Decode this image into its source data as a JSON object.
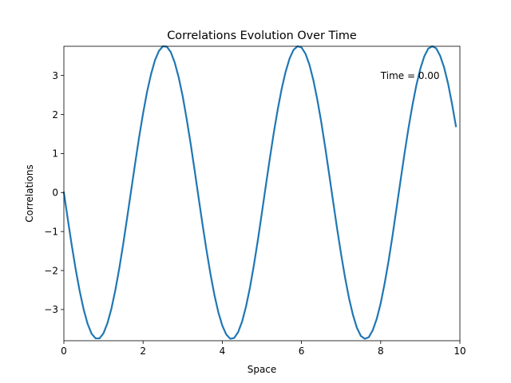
{
  "chart_data": {
    "type": "line",
    "title": "Correlations Evolution Over Time",
    "xlabel": "Space",
    "ylabel": "Correlations",
    "xlim": [
      0,
      10
    ],
    "ylim": [
      -3.8,
      3.75
    ],
    "xticks": [
      0,
      2,
      4,
      6,
      8,
      10
    ],
    "xtick_labels": [
      "0",
      "2",
      "4",
      "6",
      "8",
      "10"
    ],
    "yticks": [
      -3,
      -2,
      -1,
      0,
      1,
      2,
      3
    ],
    "ytick_labels": [
      "−3",
      "−2",
      "−1",
      "0",
      "1",
      "2",
      "3"
    ],
    "grid": false,
    "legend": "none",
    "annotation": {
      "text": "Time = 0.00",
      "x": 8.0,
      "y": 3.0
    },
    "series": [
      {
        "color": "#1f77b4",
        "x": [
          0.0,
          0.1,
          0.2,
          0.3,
          0.4,
          0.5,
          0.6,
          0.7,
          0.8,
          0.9,
          1.0,
          1.1,
          1.2,
          1.3,
          1.4,
          1.5,
          1.6,
          1.7,
          1.8,
          1.9,
          2.0,
          2.1,
          2.2,
          2.3,
          2.4,
          2.5,
          2.6,
          2.7,
          2.8,
          2.9,
          3.0,
          3.1,
          3.2,
          3.3,
          3.4,
          3.5,
          3.6,
          3.7,
          3.8,
          3.9,
          4.0,
          4.1,
          4.2,
          4.3,
          4.4,
          4.5,
          4.6,
          4.7,
          4.8,
          4.9,
          5.0,
          5.1,
          5.2,
          5.3,
          5.4,
          5.5,
          5.6,
          5.7,
          5.8,
          5.9,
          6.0,
          6.1,
          6.2,
          6.3,
          6.4,
          6.5,
          6.6,
          6.7,
          6.8,
          6.9,
          7.0,
          7.1,
          7.2,
          7.3,
          7.4,
          7.5,
          7.6,
          7.7,
          7.8,
          7.9,
          8.0,
          8.1,
          8.2,
          8.3,
          8.4,
          8.5,
          8.6,
          8.7,
          8.8,
          8.9,
          9.0,
          9.1,
          9.2,
          9.3,
          9.4,
          9.5,
          9.6,
          9.7,
          9.8,
          9.9
        ],
        "y": [
          0.0,
          -0.69,
          -1.36,
          -1.98,
          -2.53,
          -3.0,
          -3.37,
          -3.62,
          -3.74,
          -3.74,
          -3.61,
          -3.35,
          -2.98,
          -2.5,
          -1.94,
          -1.31,
          -0.63,
          0.06,
          0.75,
          1.42,
          2.03,
          2.58,
          3.03,
          3.39,
          3.63,
          3.75,
          3.74,
          3.6,
          3.33,
          2.95,
          2.47,
          1.89,
          1.26,
          0.58,
          -0.12,
          -0.81,
          -1.47,
          -2.08,
          -2.62,
          -3.07,
          -3.41,
          -3.64,
          -3.75,
          -3.73,
          -3.58,
          -3.31,
          -2.92,
          -2.43,
          -1.85,
          -1.21,
          -0.52,
          0.18,
          0.87,
          1.53,
          2.13,
          2.66,
          3.1,
          3.44,
          3.66,
          3.75,
          3.72,
          3.56,
          3.28,
          2.88,
          2.38,
          1.8,
          1.15,
          0.46,
          -0.24,
          -0.93,
          -1.58,
          -2.18,
          -2.71,
          -3.14,
          -3.47,
          -3.68,
          -3.75,
          -3.71,
          -3.53,
          -3.24,
          -2.84,
          -2.33,
          -1.75,
          -1.1,
          -0.4,
          0.3,
          0.99,
          1.64,
          2.23,
          2.75,
          3.17,
          3.49,
          3.69,
          3.75,
          3.7,
          3.51,
          3.21,
          2.8,
          2.28,
          1.7
        ]
      }
    ]
  }
}
